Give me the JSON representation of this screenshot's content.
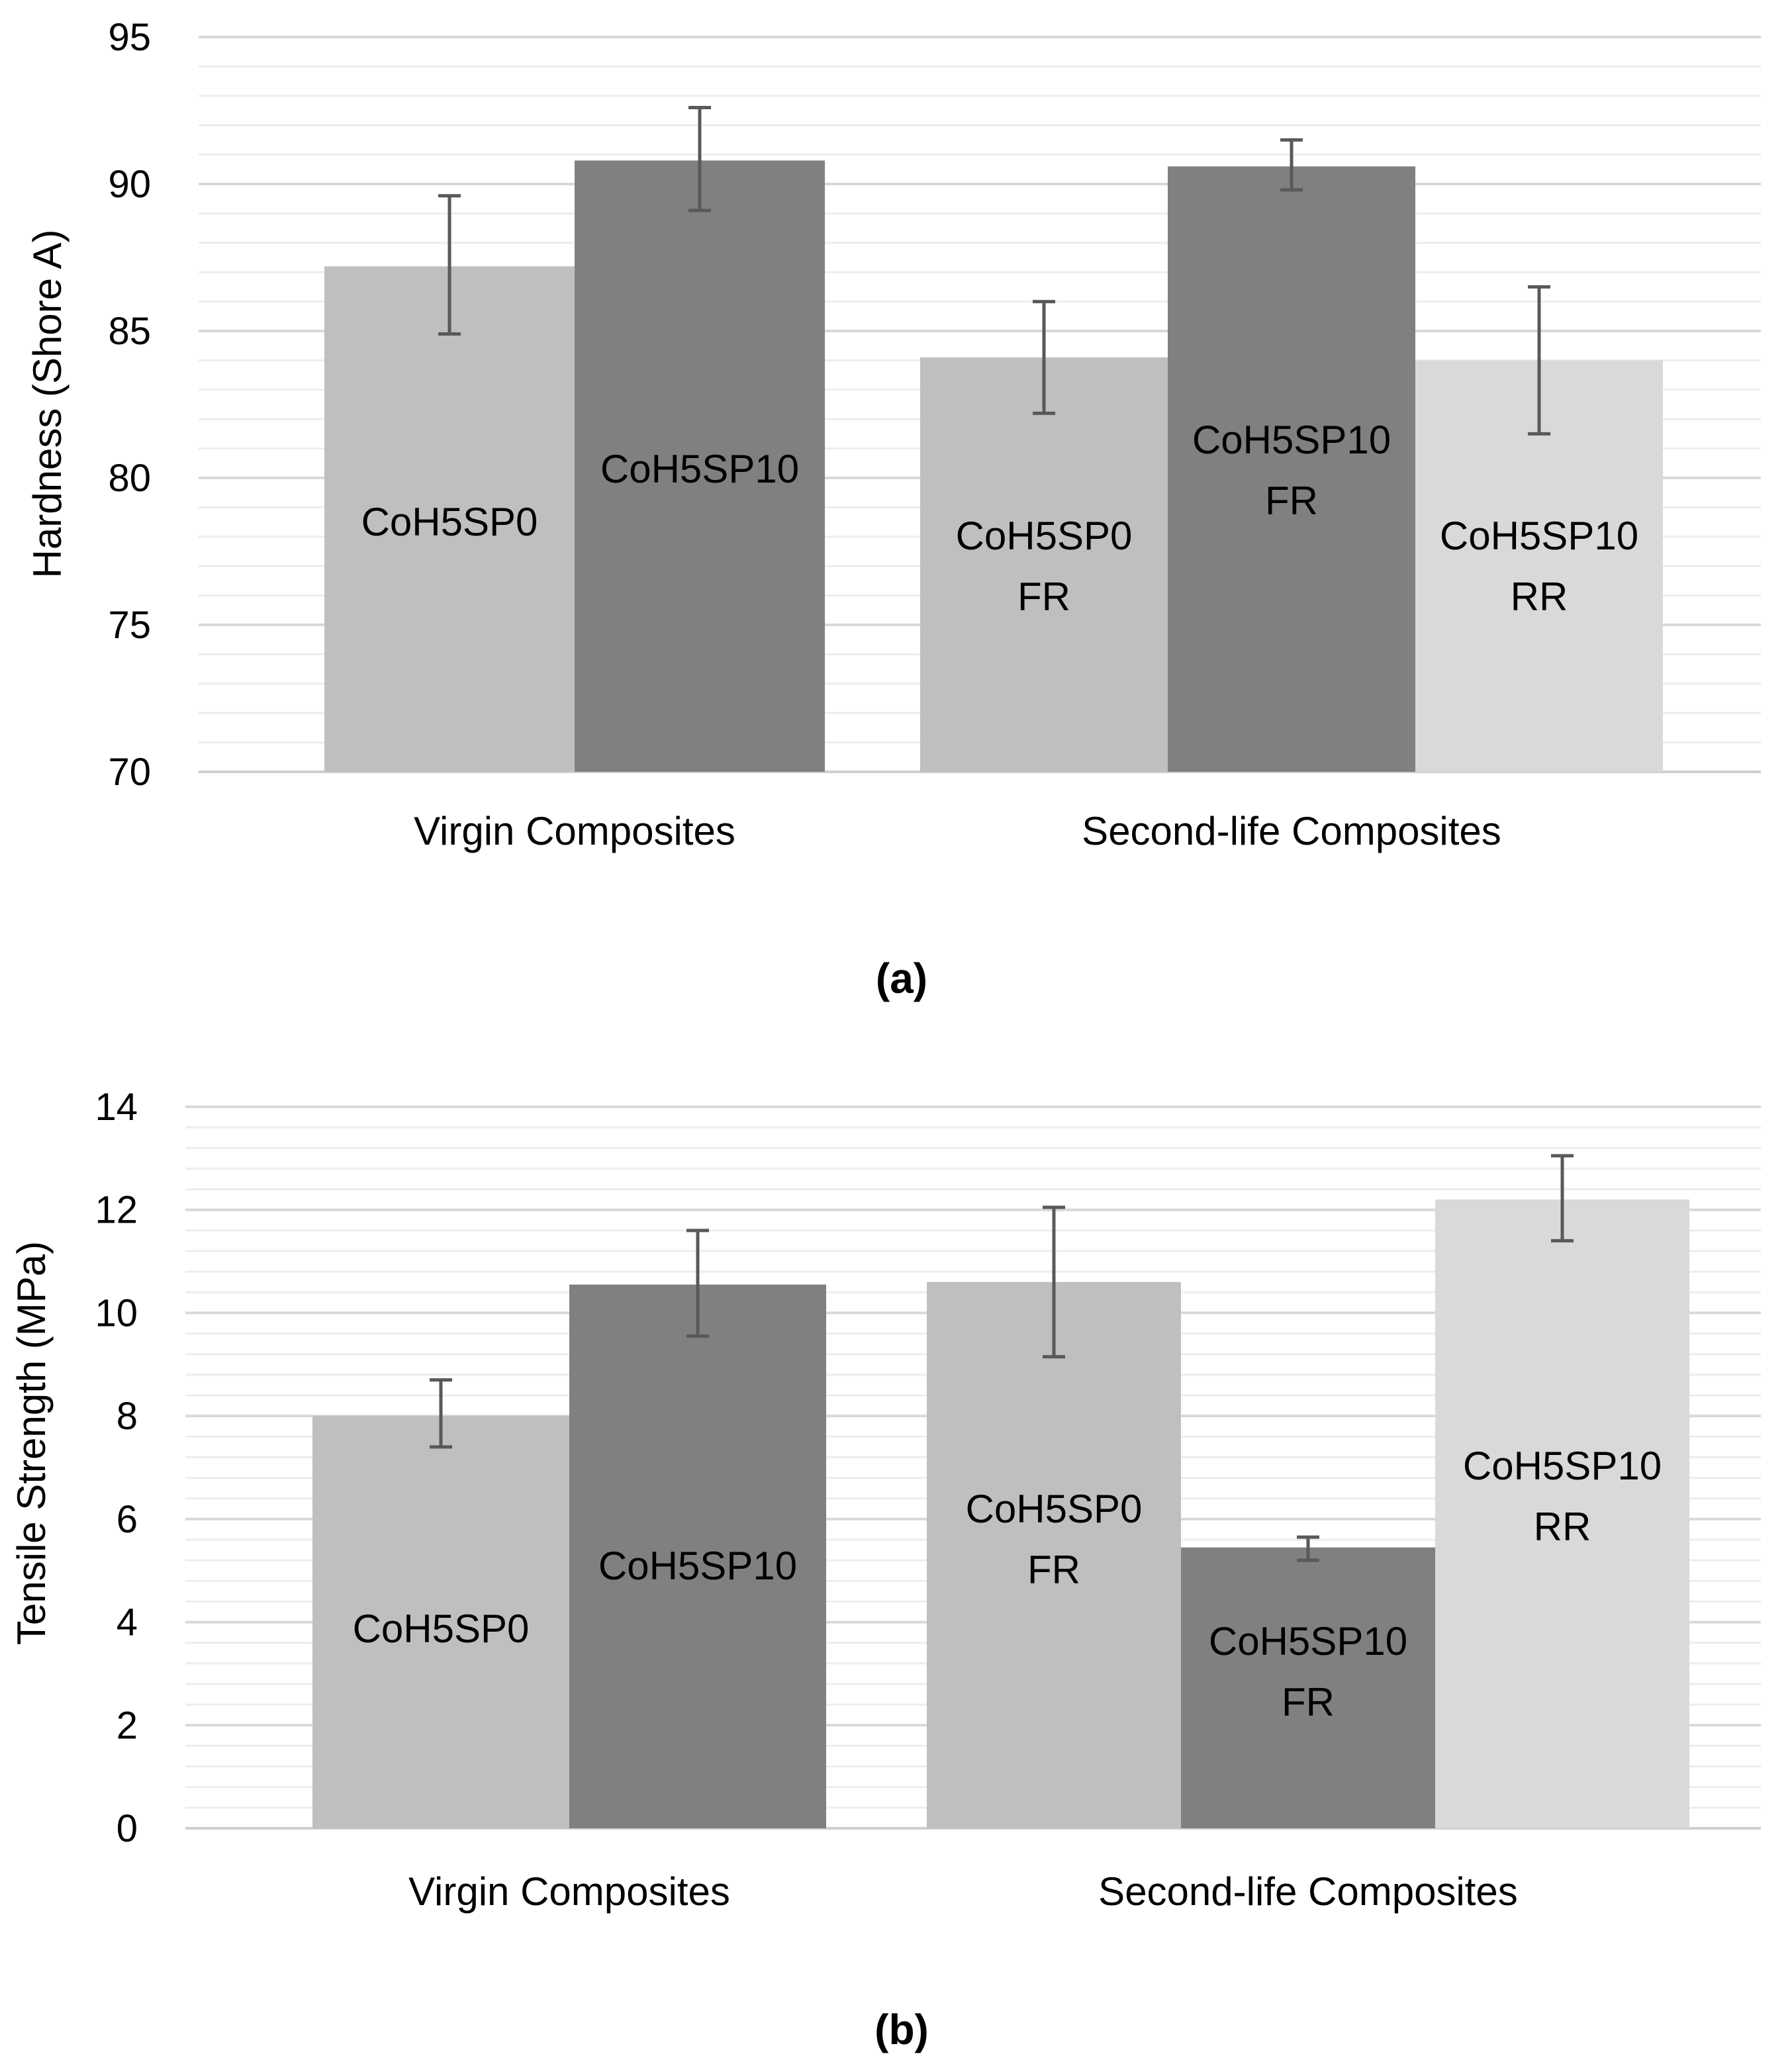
{
  "charts": [
    {
      "panel_label": "(a)",
      "chart_data": {
        "type": "bar",
        "ylabel": "Hardness (Shore A)",
        "xlabel": "",
        "title": "",
        "ylim": [
          70,
          95
        ],
        "yticks": [
          70,
          75,
          80,
          85,
          90,
          95
        ],
        "minor_grid_step": 1,
        "grid": true,
        "groups": [
          {
            "label": "Virgin Composites",
            "bars": [
              {
                "name": [
                  "CoH5SP0"
                ],
                "value": 87.2,
                "err_low": 84.9,
                "err_high": 89.6,
                "color": "#bfbfbf"
              },
              {
                "name": [
                  "CoH5SP10"
                ],
                "value": 90.8,
                "err_low": 89.1,
                "err_high": 92.6,
                "color": "#808080"
              }
            ]
          },
          {
            "label": "Second-life Composites",
            "bars": [
              {
                "name": [
                  "CoH5SP0",
                  "FR"
                ],
                "value": 84.1,
                "err_low": 82.2,
                "err_high": 86.0,
                "color": "#bfbfbf"
              },
              {
                "name": [
                  "CoH5SP10",
                  "FR"
                ],
                "value": 90.6,
                "err_low": 89.8,
                "err_high": 91.5,
                "color": "#808080"
              },
              {
                "name": [
                  "CoH5SP10",
                  "RR"
                ],
                "value": 84.0,
                "err_low": 81.5,
                "err_high": 86.5,
                "color": "#d9d9d9"
              }
            ]
          }
        ]
      }
    },
    {
      "panel_label": "(b)",
      "chart_data": {
        "type": "bar",
        "ylabel": "Tensile Strength (MPa)",
        "xlabel": "",
        "title": "",
        "ylim": [
          0,
          14
        ],
        "yticks": [
          0,
          2,
          4,
          6,
          8,
          10,
          12,
          14
        ],
        "minor_grid_step": 0.4,
        "grid": true,
        "groups": [
          {
            "label": "Virgin Composites",
            "bars": [
              {
                "name": [
                  "CoH5SP0"
                ],
                "value": 8.0,
                "err_low": 7.4,
                "err_high": 8.7,
                "color": "#bfbfbf"
              },
              {
                "name": [
                  "CoH5SP10"
                ],
                "value": 10.55,
                "err_low": 9.55,
                "err_high": 11.6,
                "color": "#808080"
              }
            ]
          },
          {
            "label": "Second-life Composites",
            "bars": [
              {
                "name": [
                  "CoH5SP0",
                  "FR"
                ],
                "value": 10.6,
                "err_low": 9.15,
                "err_high": 12.05,
                "color": "#bfbfbf"
              },
              {
                "name": [
                  "CoH5SP10",
                  "FR"
                ],
                "value": 5.45,
                "err_low": 5.2,
                "err_high": 5.65,
                "color": "#808080"
              },
              {
                "name": [
                  "CoH5SP10",
                  "RR"
                ],
                "value": 12.2,
                "err_low": 11.4,
                "err_high": 13.05,
                "color": "#d9d9d9"
              }
            ]
          }
        ]
      }
    }
  ]
}
